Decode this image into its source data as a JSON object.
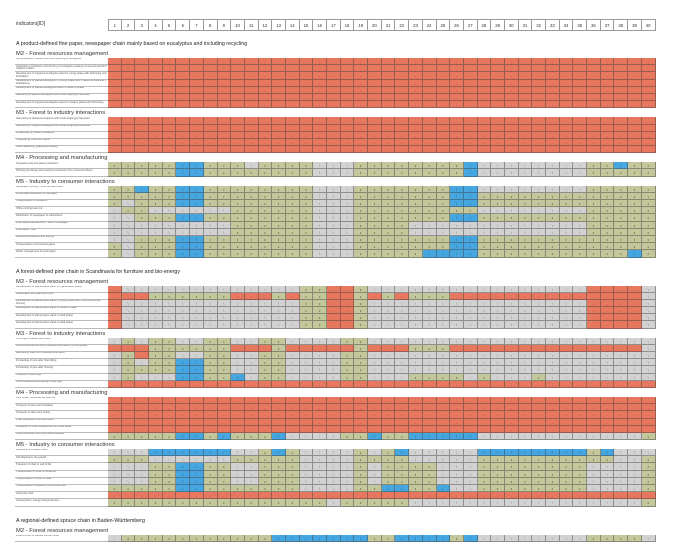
{
  "header": {
    "label": "indicators[ID]",
    "columns": [
      "1",
      "2",
      "3",
      "4",
      "5",
      "6",
      "7",
      "8",
      "9",
      "10",
      "11",
      "12",
      "13",
      "14",
      "15",
      "16",
      "17",
      "18",
      "19",
      "20",
      "21",
      "22",
      "23",
      "24",
      "25",
      "26",
      "27",
      "28",
      "29",
      "30",
      "31",
      "32",
      "33",
      "34",
      "35",
      "36",
      "37",
      "38",
      "39",
      "40"
    ]
  },
  "cell_legend": {
    "r": {
      "glyph": "-",
      "color": "#e8775f"
    },
    "g": {
      "glyph": "•",
      "color": "#c3c79b"
    },
    "b": {
      "glyph": "/",
      "color": "#46a6e0"
    },
    "x": {
      "glyph": "\\",
      "color": "#d2d2d2"
    }
  },
  "sections": [
    {
      "title": "A product-defined fine paper, newspaper chain mainly based on eucalyptus and including recycling",
      "groups": [
        {
          "heading": "M2 - Forest resources management",
          "rows": [
            {
              "label": "Site preparation, weed control and planting of eucalyptus",
              "cells": "rrrrrrrrrrrrrrrrrrrrrrrrrrrrrrrrrrrrrrrr"
            },
            {
              "label": "Application of fertilizers and thinning of eucalyptus saplings at second and third coppice rotation",
              "cells": "rrrrrrrrrrrrrrrrrrrrrrrrrrrrrrrrrrrrrrrr"
            },
            {
              "label": "Development of coppiced eucalyptus stand in young phase with harrowing and fertilization",
              "cells": "rrrrrrrrrrrrrrrrrrrrrrrrrrrrrrrrrrrrrrrr"
            },
            {
              "label": "Development of planted eucalyptus in young phase with 3 weed controls and 2 fertilizations",
              "cells": "rrrrrrrrrrrrrrrrrrrrrrrrrrrrrrrrrrrrrrrr"
            },
            {
              "label": "Development of planted eucalyptus stand in medium phase",
              "cells": "rrrrrrrrrrrrrrrrrrrrrrrrrrrrrrrrrrrrrrrr"
            },
            {
              "label": "Harvesting of planted eucalyptus with small single-grip harvester",
              "cells": "rrrrrrrrrrrrrrrrrrrrrrrrrrrrrrrrrrrrrrrr"
            },
            {
              "label": "Development of coppiced eucalyptus stand in medium phase with harrowing",
              "cells": "rrrrrrrrrrrrrrrrrrrrrrrrrrrrrrrrrrrrrrrr"
            }
          ]
        },
        {
          "heading": "M3 - Forest to industry interactions",
          "rows": [
            {
              "label": "Harvesting of planted eucalyptus with small single-grip harvester",
              "cells": "rrrrrrrrrrrrrrrrrrrrrrrrrrrrrrrrrrrrrrrr"
            },
            {
              "label": "Harvesting of coppice eucalyptus with small single-grip harvester",
              "cells": "rrrrrrrrrrrrrrrrrrrrrrrrrrrrrrrrrrrrrrrr"
            },
            {
              "label": "Forwarding by medium forwarder",
              "cells": "rrrrrrrrrrrrrrrrrrrrrrrrrrrrrrrrrrrrrrrr"
            },
            {
              "label": "Transport by truck with crane",
              "cells": "rrrrrrrrrrrrrrrrrrrrrrrrrrrrrrrrrrrrrrrr"
            },
            {
              "label": "Final measuring, grading and selling",
              "cells": "rrrrrrrrrrrrrrrrrrrrrrrrrrrrrrrrrrrrrrrr"
            }
          ]
        },
        {
          "heading": "M4 - Processing and manufacturing",
          "rows": [
            {
              "label": "Integrated pulp and paper production",
              "cells": "gggggbbgggxggggxxxggggggggbxxxxxxxxggbgg"
            },
            {
              "label": "Printing (de-inking) and newsprint production from recovered fibers",
              "cells": "gggggbbggggggggxxxggggggggbxxxxxxxxggggg"
            }
          ]
        },
        {
          "heading": "M5 - Industry to consumer interactions",
          "rows": [
            {
              "label": "Newspaper printing - Cold set web offset",
              "cells": "ggbggbbggggggggxxxgggggggbbxxxxxxxxggggg"
            },
            {
              "label": "Whole sale distribution of fine paper",
              "cells": "gggggbbggggggggxxxgggggggbbggggggggggggg"
            },
            {
              "label": "Transportation of newsprint",
              "cells": "gxgggbbggggggggxxxgggggggbbggggggggggggg"
            },
            {
              "label": "Office printing laser ink",
              "cells": "xggxxxxxxggggggxxxgggggggggxxxxxxxxggggg"
            },
            {
              "label": "Distribution of newspaper to subscribers",
              "cells": "xxgggbbggggggggxxxgggggggbbggggggggggggg"
            },
            {
              "label": "Information/entertainment - use of newspaper",
              "cells": "xxxxxxxxxggggggxxxggggxxxxxxxxxxxxxggggg"
            },
            {
              "label": "Information - use",
              "cells": "xxxxxxxxxggggggxxxggggxxxxxxxxxxxxxggggg"
            },
            {
              "label": "Recovered collection and sorting",
              "cells": "xxgggbbggggggggxxxgggggggbbggggggggggggg"
            },
            {
              "label": "Transportation of recovered paper",
              "cells": "gxgggbbggggggggxxxgggggggbbggggggggggggg"
            },
            {
              "label": "Waste management of used paper",
              "cells": "gxgggbbggggggggxxxgggggbbbbgggggggggggbg"
            }
          ]
        }
      ]
    },
    {
      "title": "A forest-defined pine chain in Scandinavia for furniture and bio-energy",
      "groups": [
        {
          "heading": "M2 - Forest resources management",
          "rows": [
            {
              "label": "Development of planted pine stand in regeneration phase",
              "cells": "rxxxxxxxxxxxxxggrrgxxxxxxxxxxxxxxxxrrrrx"
            },
            {
              "label": "Scarification and planting of pine",
              "cells": "rrrggggggrrrgrggrrgrgrgggrrrrrrrrrrrrrrx"
            },
            {
              "label": "Development of planted pine stand in young phase with 1 pre-commercial thinning",
              "cells": "rxxxxxxxxxxxxxggrrgxxxxxxxxxxxxxxxxrrrrx"
            },
            {
              "label": "Development of planted pine stand in medium phase",
              "cells": "rxxxxxxxxxxxxxggrrgxxxxxxxxxxxxxxxxrrrrx"
            },
            {
              "label": "Development of planted pine stand in adult phase",
              "cells": "rxxxxxxxxxxxxxggrrgxxxxxxxxxxxxxxxxrrrrx"
            },
            {
              "label": "Development of planted pine stand in adult phase",
              "cells": "rxxxxxxxxxxxxxggrrgxxxxxxxxxxxxxxxxrrrrx"
            }
          ]
        },
        {
          "heading": "M3 - Forest to industry interactions",
          "rows": [
            {
              "label": "Thinning of planted pine stand",
              "cells": "xgxggxxggxxggxxxxggxxxxxxxxxxxxxxxxxxxxx"
            },
            {
              "label": "Pre-commercial thinning of planted pine stand in young phase",
              "cells": "rrrggggggrrrgrrrrrgrrrgggrrrrrrrrrrrrrrx"
            },
            {
              "label": "Harvesting, clear cut of planted pine stand",
              "cells": "xgrggxxggxxggxxxxggxxxxxxxxxxxxxxxxxxxxx"
            },
            {
              "label": "Forwarding of pine after final felling",
              "cells": "xgxggbbggxxggxxxxggxxxxxxxxxxxxxxxxxxxxx"
            },
            {
              "label": "Forwarding of pine after thinning",
              "cells": "xggggbbggxxggxxxxggxxxxxxxxxxxxxxxxxxxxx"
            },
            {
              "label": "Transport of pine logs",
              "cells": "xgxxxbbggbxggxxxxggxxxggggxgxxxgxxxxxxxx"
            },
            {
              "label": "Price measuring and selling of pine logs",
              "cells": "rrrrrrrrrrrrrrrrrrrrrrrrrrrrrrrrrrrrrrrr"
            }
          ]
        },
        {
          "heading": "M4 - Processing and manufacturing",
          "rows": [
            {
              "label": "Pine timber conversion at saw mill",
              "cells": "rrrrrrrrrrrrrrrrrrrrrrrrrrrrrrrrrrrrrrrr"
            },
            {
              "label": "Transport of pine wood residues",
              "cells": "rrrrrrrrrrrrrrrrrrrrrrrrrrrrrrrrrrrrrrrr"
            },
            {
              "label": "Transport of sawn pine timber",
              "cells": "rrrrrrrrrrrrrrrrrrrrrrrrrrrrrrrrrrrrrrrr"
            },
            {
              "label": "Chair production from pine wood",
              "cells": "rrrrrrrrrrrrrrrrrrrrrrrrrrrrrrrrrrrrrrrr"
            },
            {
              "label": "Production of chair components from pine wood",
              "cells": "rrrrrrrrrrrrrrrrrrrrrrrrrrrrrrrrrrrrrrrr"
            },
            {
              "label": "Pellet production from pine wood residues",
              "cells": "gggggbbgbgggbxxxxggbggbbbbbxxxxxxxxxxxxg"
            }
          ]
        },
        {
          "heading": "M5 - Industry to consumer interactions",
          "rows": [
            {
              "label": "Assessment of wood chairs",
              "cells": "xxxbbbbbbxxgbgxxxxgxgbxxxxxbbbbbbbbgbxxx"
            },
            {
              "label": "Sell disposal to the growth",
              "cells": "gggxxxxxxgggggxxxxggggxxxxxggggggggggxxg"
            },
            {
              "label": "Transport of chair to end of life",
              "cells": "xxxggbbggxxgggxxxxgxggggxxxggggggggxxxxg"
            },
            {
              "label": "Transportation of chair to customer",
              "cells": "xxxggbbggxxgggxxxxgxggggxxxggggggggxxxxg"
            },
            {
              "label": "Transportation of chair to retail",
              "cells": "xxxggbbggxxgggxxxxgxggggxxxggggggggxxxxg"
            },
            {
              "label": "Transportation of pellets to home wood use",
              "cells": "gggggbbgggggggxxxxggbbggbxxggggggggxxxxg"
            },
            {
              "label": "Using the chair",
              "cells": "rrrrrrrrrrrrrrrrrrrrrrrrrrrrrrrrrrrrrrrr"
            },
            {
              "label": "Consumption, energy heat production",
              "cells": "ggggggggggggggggxgggggxxxxxxxxxxxxxxxxxg"
            }
          ]
        }
      ]
    },
    {
      "title": "A regional-defined spruce chain in Baden-Württemberg",
      "groups": [
        {
          "heading": "M2 - Forest resources management",
          "rows": [
            {
              "label": "Weed control in planted spruce forest",
              "cells": "xgggggggggggbbbbbbbggbbbbgbxxxxxxxxggggx"
            }
          ]
        }
      ]
    }
  ]
}
